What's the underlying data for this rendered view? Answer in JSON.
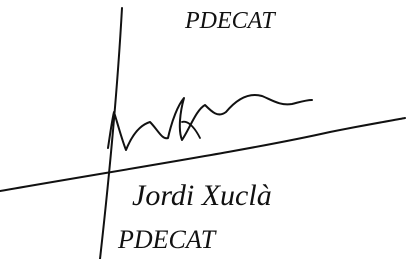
{
  "signature": {
    "top_text": "PDECAT",
    "name": "Jordi Xuclà",
    "bottom_text": "PDECAT"
  }
}
